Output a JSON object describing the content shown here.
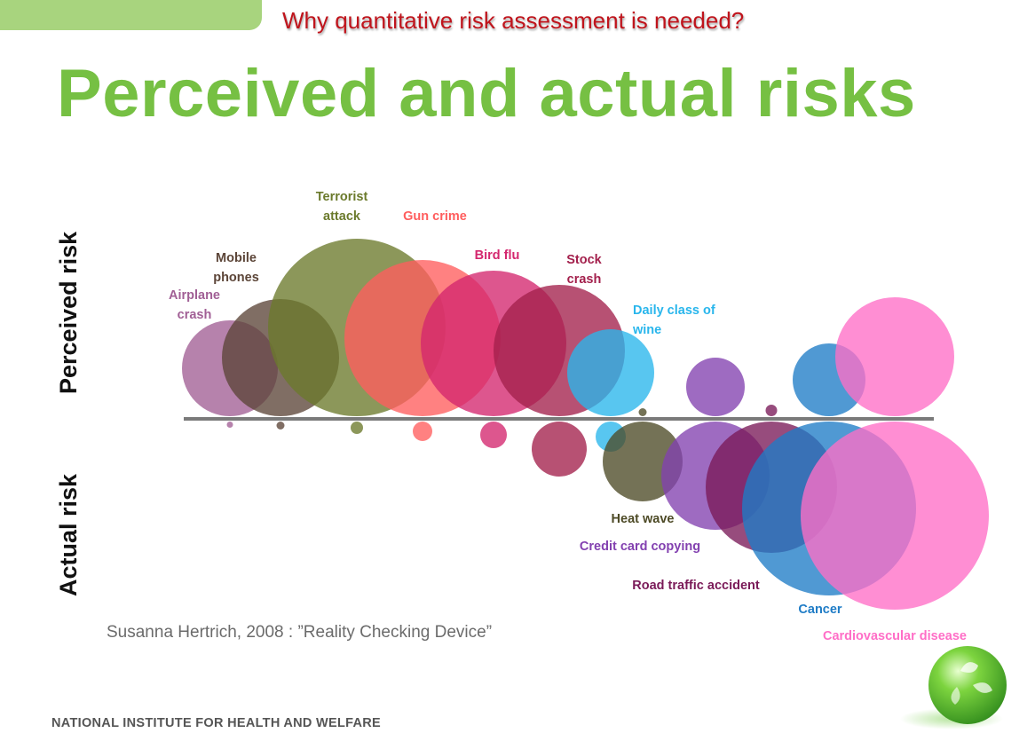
{
  "header": {
    "subtitle": "Why quantitative risk assessment is needed?",
    "title": "Perceived and actual risks"
  },
  "citation": "Susanna Hertrich, 2008 : ”Reality Checking Device”",
  "footer": "NATIONAL INSTITUTE FOR HEALTH AND WELFARE",
  "chart_data": {
    "type": "bubble",
    "axis_labels": {
      "top": "Perceived risk",
      "bottom": "Actual risk"
    },
    "grid": false,
    "legend": "none",
    "value_units": "relative bubble radius (approximate, read from image)",
    "series": [
      {
        "label": [
          "Airplane",
          "crash"
        ],
        "color": "#a15f95",
        "perceived": 54,
        "actual": 3.5
      },
      {
        "label": [
          "Mobile",
          "phones"
        ],
        "color": "#5c4538",
        "perceived": 66,
        "actual": 4.5
      },
      {
        "label": [
          "Terrorist",
          "attack"
        ],
        "color": "#6b7a2c",
        "perceived": 100,
        "actual": 7
      },
      {
        "label": [
          "Gun crime"
        ],
        "color": "#ff5d5d",
        "perceived": 88,
        "actual": 11
      },
      {
        "label": [
          "Bird flu"
        ],
        "color": "#d4266e",
        "perceived": 82,
        "actual": 15
      },
      {
        "label": [
          "Stock",
          "crash"
        ],
        "color": "#a3204c",
        "perceived": 74,
        "actual": 31
      },
      {
        "label": [
          "Daily class of",
          "wine"
        ],
        "color": "#29b6ec",
        "perceived": 49,
        "actual": 17
      },
      {
        "label": [
          "Heat wave"
        ],
        "color": "#4d4a26",
        "perceived": 4.5,
        "actual": 45
      },
      {
        "label": [
          "Credit card copying"
        ],
        "color": "#8341b0",
        "perceived": 33,
        "actual": 61
      },
      {
        "label": [
          "Road traffic accident"
        ],
        "color": "#7a1a58",
        "perceived": 6.5,
        "actual": 74
      },
      {
        "label": [
          "Cancer"
        ],
        "color": "#1f7cc6",
        "perceived": 41,
        "actual": 98
      },
      {
        "label": [
          "Cardiovascular disease"
        ],
        "color": "#ff6ec7",
        "perceived": 67,
        "actual": 106
      }
    ]
  }
}
